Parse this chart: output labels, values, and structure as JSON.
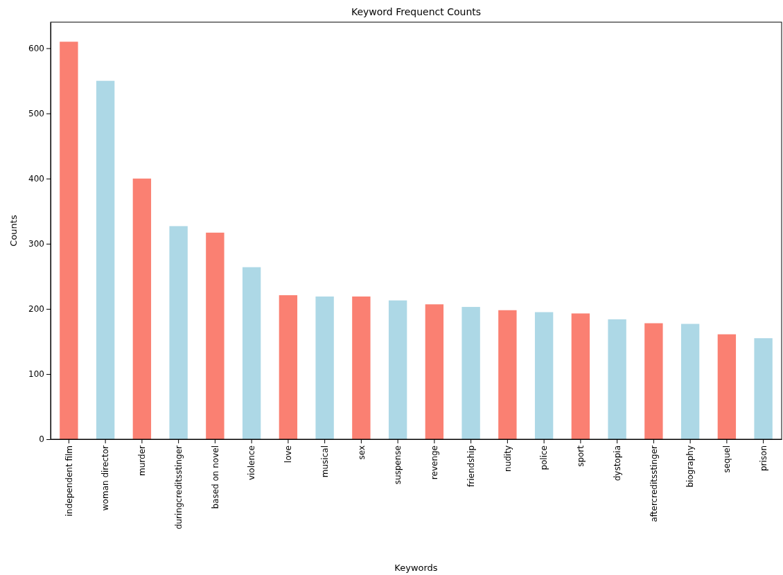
{
  "chart_data": {
    "type": "bar",
    "title": "Keyword Frequenct Counts",
    "xlabel": "Keywords",
    "ylabel": "Counts",
    "categories": [
      "independent film",
      "woman director",
      "murder",
      "duringcreditsstinger",
      "based on novel",
      "violence",
      "love",
      "musical",
      "sex",
      "suspense",
      "revenge",
      "friendship",
      "nudity",
      "police",
      "sport",
      "dystopia",
      "aftercreditsstinger",
      "biography",
      "sequel",
      "prison"
    ],
    "values": [
      610,
      550,
      400,
      327,
      317,
      264,
      221,
      219,
      219,
      213,
      207,
      203,
      198,
      195,
      193,
      184,
      178,
      177,
      161,
      155
    ],
    "colors": [
      "#fa8072",
      "#add8e6",
      "#fa8072",
      "#add8e6",
      "#fa8072",
      "#add8e6",
      "#fa8072",
      "#add8e6",
      "#fa8072",
      "#add8e6",
      "#fa8072",
      "#add8e6",
      "#fa8072",
      "#add8e6",
      "#fa8072",
      "#add8e6",
      "#fa8072",
      "#add8e6",
      "#fa8072",
      "#add8e6"
    ],
    "ylim": [
      0,
      640
    ],
    "yticks": [
      0,
      100,
      200,
      300,
      400,
      500,
      600
    ],
    "grid": false
  }
}
